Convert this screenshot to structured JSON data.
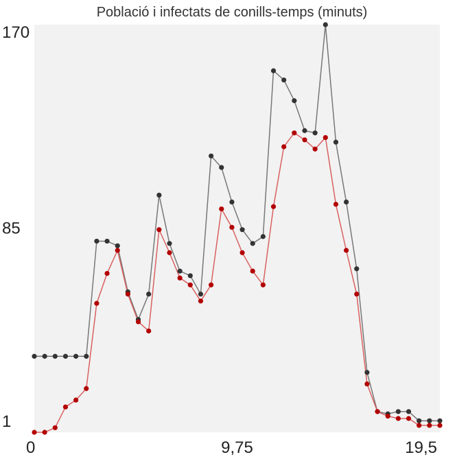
{
  "chart_data": {
    "type": "line",
    "title": "Població i infectats de conills-temps (minuts)",
    "xlabel": "",
    "ylabel": "",
    "xlim": [
      0,
      19.5
    ],
    "ylim": [
      -4,
      173
    ],
    "x_ticks": [
      "0",
      "9,75",
      "19,5"
    ],
    "y_ticks": [
      "1",
      "85",
      "170"
    ],
    "grid": false,
    "background": "#f2f2f2",
    "x": [
      0,
      0.5,
      1,
      1.5,
      2,
      2.5,
      3,
      3.5,
      4,
      4.5,
      5,
      5.5,
      6,
      6.5,
      7,
      7.5,
      8,
      8.5,
      9,
      9.5,
      10,
      10.5,
      11,
      11.5,
      12,
      12.5,
      13,
      13.5,
      14,
      14.5,
      15,
      15.5,
      16,
      16.5,
      17,
      17.5,
      18,
      18.5,
      19,
      19.5
    ],
    "series": [
      {
        "color": "#333333",
        "line_color": "#777777",
        "values": [
          29,
          29,
          29,
          29,
          29,
          29,
          79,
          79,
          77,
          57,
          45,
          56,
          99,
          78,
          66,
          64,
          56,
          116,
          111,
          96,
          84,
          78,
          81,
          153,
          149,
          140,
          127,
          126,
          173,
          122,
          96,
          67,
          22,
          5,
          4,
          5,
          5,
          1,
          1,
          1
        ]
      },
      {
        "color": "#b30000",
        "line_color": "#d96060",
        "values": [
          -4,
          -4,
          -2,
          7,
          10,
          15,
          52,
          65,
          75,
          56,
          44,
          40,
          84,
          74,
          63,
          60,
          53,
          60,
          93,
          85,
          74,
          66,
          60,
          94,
          120,
          126,
          123,
          119,
          124,
          95,
          75,
          56,
          17,
          5,
          3,
          2,
          2,
          -1,
          -1,
          -1
        ]
      }
    ]
  }
}
